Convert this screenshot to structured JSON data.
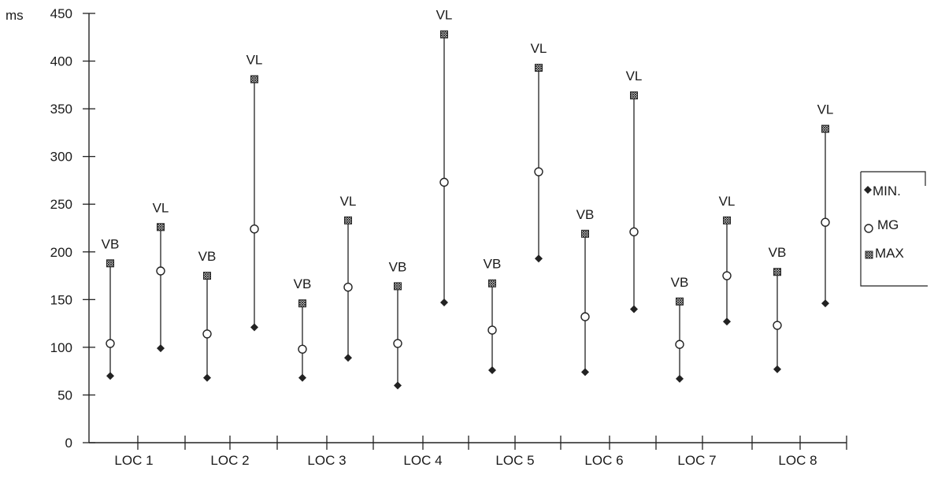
{
  "chart_data": {
    "type": "scatter",
    "title": "",
    "xlabel": "",
    "ylabel": "ms",
    "ylim": [
      0,
      450
    ],
    "yticks": [
      0,
      50,
      100,
      150,
      200,
      250,
      300,
      350,
      400,
      450
    ],
    "categories": [
      "LOC 1",
      "LOC 2",
      "LOC 3",
      "LOC 4",
      "LOC 5",
      "LOC 6",
      "LOC 7",
      "LOC 8"
    ],
    "legend_position": "right",
    "series": [
      {
        "name": "MIN.",
        "marker": "diamond-filled",
        "values": [
          70,
          99,
          68,
          121,
          68,
          89,
          60,
          147,
          76,
          193,
          74,
          140,
          67,
          127,
          77,
          146
        ]
      },
      {
        "name": "MG",
        "marker": "circle-open",
        "values": [
          104,
          180,
          114,
          224,
          98,
          163,
          104,
          273,
          118,
          284,
          132,
          221,
          103,
          175,
          123,
          231
        ]
      },
      {
        "name": "MAX",
        "marker": "square-hatched",
        "values": [
          188,
          226,
          175,
          381,
          146,
          233,
          164,
          428,
          167,
          393,
          219,
          364,
          148,
          233,
          179,
          329
        ]
      }
    ],
    "groups": [
      {
        "label": "VB",
        "category": "LOC 1"
      },
      {
        "label": "VL",
        "category": "LOC 1"
      },
      {
        "label": "VB",
        "category": "LOC 2"
      },
      {
        "label": "VL",
        "category": "LOC 2"
      },
      {
        "label": "VB",
        "category": "LOC 3"
      },
      {
        "label": "VL",
        "category": "LOC 3"
      },
      {
        "label": "VB",
        "category": "LOC 4"
      },
      {
        "label": "VL",
        "category": "LOC 4"
      },
      {
        "label": "VB",
        "category": "LOC 5"
      },
      {
        "label": "VL",
        "category": "LOC 5"
      },
      {
        "label": "VB",
        "category": "LOC 6"
      },
      {
        "label": "VL",
        "category": "LOC 6"
      },
      {
        "label": "VB",
        "category": "LOC 7"
      },
      {
        "label": "VL",
        "category": "LOC 7"
      },
      {
        "label": "VB",
        "category": "LOC 8"
      },
      {
        "label": "VL",
        "category": "LOC 8"
      }
    ]
  }
}
